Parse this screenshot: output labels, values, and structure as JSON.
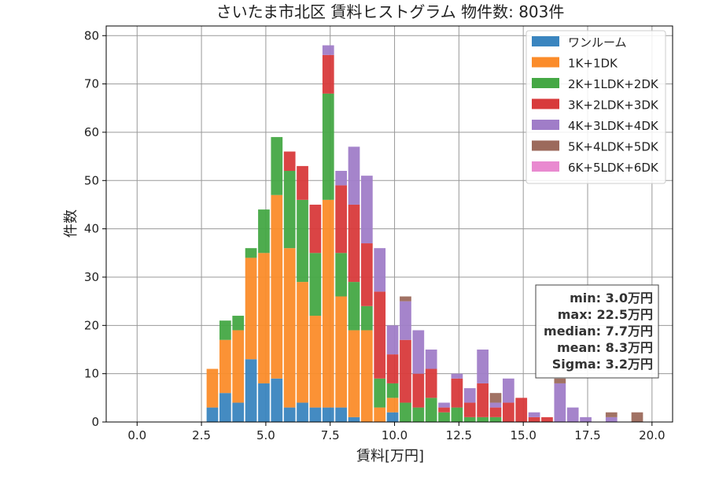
{
  "chart_data": {
    "type": "bar",
    "title": "さいたま市北区 賃料ヒストグラム 物件数: 803件",
    "xlabel": "賃料[万円]",
    "ylabel": "件数",
    "xlim": [
      -1.2,
      20.8
    ],
    "ylim": [
      0,
      82
    ],
    "xticks": [
      0.0,
      2.5,
      5.0,
      7.5,
      10.0,
      12.5,
      15.0,
      17.5,
      20.0
    ],
    "xtick_labels": [
      "0.0",
      "2.5",
      "5.0",
      "7.5",
      "10.0",
      "12.5",
      "15.0",
      "17.5",
      "20.0"
    ],
    "yticks": [
      0,
      10,
      20,
      30,
      40,
      50,
      60,
      70,
      80
    ],
    "ytick_labels": [
      "0",
      "10",
      "20",
      "30",
      "40",
      "50",
      "60",
      "70",
      "80"
    ],
    "grid": true,
    "stacked": true,
    "legend_position": "top-right",
    "bin_starts": [
      2.7,
      3.2,
      3.7,
      4.2,
      4.7,
      5.2,
      5.7,
      6.2,
      6.7,
      7.2,
      7.7,
      8.2,
      8.7,
      9.2,
      9.7,
      10.2,
      10.7,
      11.2,
      11.7,
      12.2,
      12.7,
      13.2,
      13.7,
      14.2,
      14.7,
      15.2,
      15.7,
      16.2,
      16.7,
      17.2,
      17.7,
      18.2,
      18.7,
      19.2
    ],
    "bin_width": 0.5,
    "series": [
      {
        "name": "ワンルーム",
        "color": "#3a85bf",
        "values": [
          3,
          6,
          4,
          13,
          8,
          9,
          3,
          4,
          3,
          3,
          3,
          1,
          0,
          0,
          2,
          0,
          0,
          0,
          0,
          0,
          0,
          0,
          0,
          0,
          0,
          0,
          0,
          0,
          0,
          0,
          0,
          0,
          0,
          0
        ]
      },
      {
        "name": "1K+1DK",
        "color": "#fb8c2a",
        "values": [
          8,
          11,
          15,
          21,
          27,
          38,
          33,
          25,
          19,
          43,
          23,
          18,
          19,
          3,
          3,
          0,
          0,
          0,
          0,
          0,
          0,
          0,
          0,
          0,
          0,
          0,
          0,
          0,
          0,
          0,
          0,
          0,
          0,
          0
        ]
      },
      {
        "name": "2K+1LDK+2DK",
        "color": "#45a845",
        "values": [
          0,
          4,
          3,
          2,
          9,
          12,
          16,
          17,
          13,
          22,
          9,
          10,
          5,
          6,
          3,
          4,
          3,
          5,
          2,
          3,
          1,
          1,
          1,
          0,
          0,
          0,
          0,
          0,
          0,
          0,
          0,
          0,
          0,
          0
        ]
      },
      {
        "name": "3K+2LDK+3DK",
        "color": "#d83a3b",
        "values": [
          0,
          0,
          0,
          0,
          0,
          0,
          4,
          7,
          10,
          8,
          14,
          16,
          13,
          18,
          6,
          13,
          7,
          6,
          1,
          6,
          3,
          7,
          2,
          4,
          5,
          1,
          1,
          0,
          0,
          0,
          0,
          0,
          0,
          0
        ]
      },
      {
        "name": "4K+3LDK+4DK",
        "color": "#a07dc8",
        "values": [
          0,
          0,
          0,
          0,
          0,
          0,
          0,
          0,
          0,
          2,
          3,
          12,
          14,
          9,
          6,
          8,
          9,
          4,
          1,
          1,
          3,
          7,
          1,
          5,
          0,
          1,
          0,
          8,
          3,
          1,
          0,
          1,
          0,
          0
        ]
      },
      {
        "name": "5K+4LDK+5DK",
        "color": "#9c6a5c",
        "values": [
          0,
          0,
          0,
          0,
          0,
          0,
          0,
          0,
          0,
          0,
          0,
          0,
          0,
          0,
          0,
          1,
          0,
          0,
          0,
          0,
          0,
          0,
          2,
          0,
          0,
          0,
          0,
          1,
          0,
          0,
          0,
          1,
          0,
          2
        ]
      },
      {
        "name": "6K+5LDK+6DK",
        "color": "#e98ad0",
        "values": [
          0,
          0,
          0,
          0,
          0,
          0,
          0,
          0,
          0,
          0,
          0,
          0,
          0,
          0,
          0,
          0,
          0,
          0,
          0,
          0,
          0,
          0,
          0,
          0,
          0,
          0,
          0,
          0,
          0,
          0,
          0,
          0,
          0,
          0
        ]
      }
    ],
    "stats_box": [
      "min: 3.0万円",
      "max: 22.5万円",
      "median: 7.7万円",
      "mean: 8.3万円",
      "Sigma: 3.2万円"
    ]
  }
}
